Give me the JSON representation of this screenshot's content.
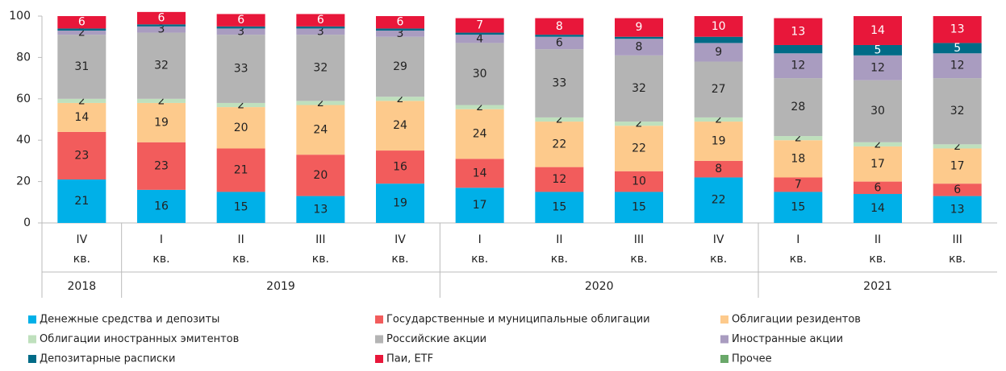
{
  "chart_data": {
    "type": "stacked_bar",
    "categories": [
      "IV",
      "I",
      "II",
      "III",
      "IV",
      "I",
      "II",
      "III",
      "IV",
      "I",
      "II",
      "III"
    ],
    "category_suffix": "кв.",
    "groups": [
      {
        "name": "2018",
        "count": 1
      },
      {
        "name": "2019",
        "count": 4
      },
      {
        "name": "2020",
        "count": 4
      },
      {
        "name": "2021",
        "count": 3
      }
    ],
    "ylim": [
      0,
      100
    ],
    "yticks": [
      0,
      20,
      40,
      60,
      80,
      100
    ],
    "series": [
      {
        "name": "Денежные средства и депозиты",
        "color": "#00b0e8",
        "label_color": "#222",
        "values": [
          21,
          16,
          15,
          13,
          19,
          17,
          15,
          15,
          22,
          15,
          14,
          13
        ]
      },
      {
        "name": "Государственные и муниципальные облигации",
        "color": "#f25c5c",
        "label_color": "#222",
        "values": [
          23,
          23,
          21,
          20,
          16,
          14,
          12,
          10,
          8,
          7,
          6,
          6
        ]
      },
      {
        "name": "Облигации резидентов",
        "color": "#fdca8c",
        "label_color": "#222",
        "values": [
          14,
          19,
          20,
          24,
          24,
          24,
          22,
          22,
          19,
          18,
          17,
          17
        ]
      },
      {
        "name": "Облигации иностранных эмитентов",
        "color": "#bfe0bd",
        "label_color": "#222",
        "values": [
          2,
          2,
          2,
          2,
          2,
          2,
          2,
          2,
          2,
          2,
          2,
          2
        ]
      },
      {
        "name": "Российские акции",
        "color": "#b4b4b4",
        "label_color": "#222",
        "values": [
          31,
          32,
          33,
          32,
          29,
          30,
          33,
          32,
          27,
          28,
          30,
          32
        ]
      },
      {
        "name": "Иностранные акции",
        "color": "#a99cc0",
        "label_color": "#222",
        "values": [
          2,
          3,
          3,
          3,
          3,
          4,
          6,
          8,
          9,
          12,
          12,
          12
        ]
      },
      {
        "name": "Депозитарные расписки",
        "color": "#006b87",
        "label_color": "#fff",
        "values": [
          1,
          1,
          1,
          1,
          1,
          1,
          1,
          1,
          3,
          4,
          5,
          5
        ],
        "value_labels": [
          null,
          null,
          null,
          null,
          null,
          null,
          null,
          null,
          null,
          null,
          "5",
          "5"
        ]
      },
      {
        "name": "Паи, ETF",
        "color": "#e8173a",
        "label_color": "#fff",
        "values": [
          6,
          6,
          6,
          6,
          6,
          7,
          8,
          9,
          10,
          13,
          14,
          13
        ]
      },
      {
        "name": "Прочее",
        "color": "#6aa86a",
        "label_color": "#fff",
        "values": [
          0,
          0,
          0,
          0,
          0,
          0,
          0,
          0,
          0,
          0,
          0,
          0
        ],
        "value_labels": [
          null,
          null,
          null,
          null,
          null,
          null,
          null,
          null,
          null,
          null,
          null,
          null
        ]
      }
    ]
  }
}
